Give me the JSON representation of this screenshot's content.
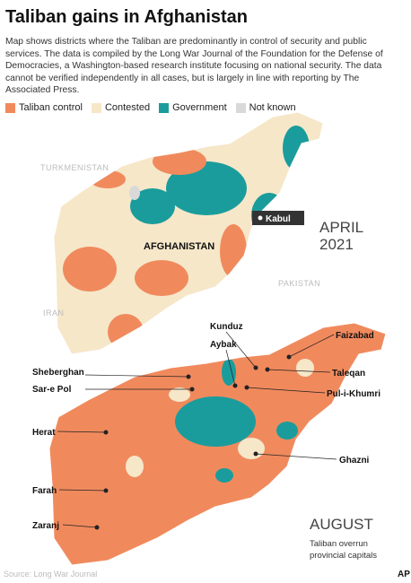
{
  "header": {
    "title": "Taliban gains in Afghanistan",
    "description": "Map shows districts where the Taliban are predominantly in control of security and public services. The data is compiled by the Long War Journal of the Foundation for the Defense of Democracies, a Washington-based research institute focusing on national security. The data cannot be verified independently in all cases, but is largely in line with reporting by The Associated Press."
  },
  "legend": {
    "items": [
      {
        "label": "Taliban control",
        "color": "#f08a5d"
      },
      {
        "label": "Contested",
        "color": "#f6e7c9"
      },
      {
        "label": "Government",
        "color": "#1b9c9c"
      },
      {
        "label": "Not known",
        "color": "#d9d9d9"
      }
    ]
  },
  "april_map": {
    "countries": [
      "TURKMENISTAN",
      "AFGHANISTAN",
      "PAKISTAN",
      "IRAN"
    ],
    "capital": "Kabul",
    "period": [
      "APRIL",
      "2021"
    ]
  },
  "august_map": {
    "cities": [
      "Kunduz",
      "Aybak",
      "Faizabad",
      "Sheberghan",
      "Taleqan",
      "Sar-e Pol",
      "Pul-i-Khumri",
      "Herat",
      "Ghazni",
      "Farah",
      "Zaranj"
    ],
    "period": "AUGUST",
    "note": [
      "Taliban overrun",
      "provincial capitals"
    ]
  },
  "footer": {
    "source": "Source: Long War Journal",
    "credit": "AP"
  }
}
